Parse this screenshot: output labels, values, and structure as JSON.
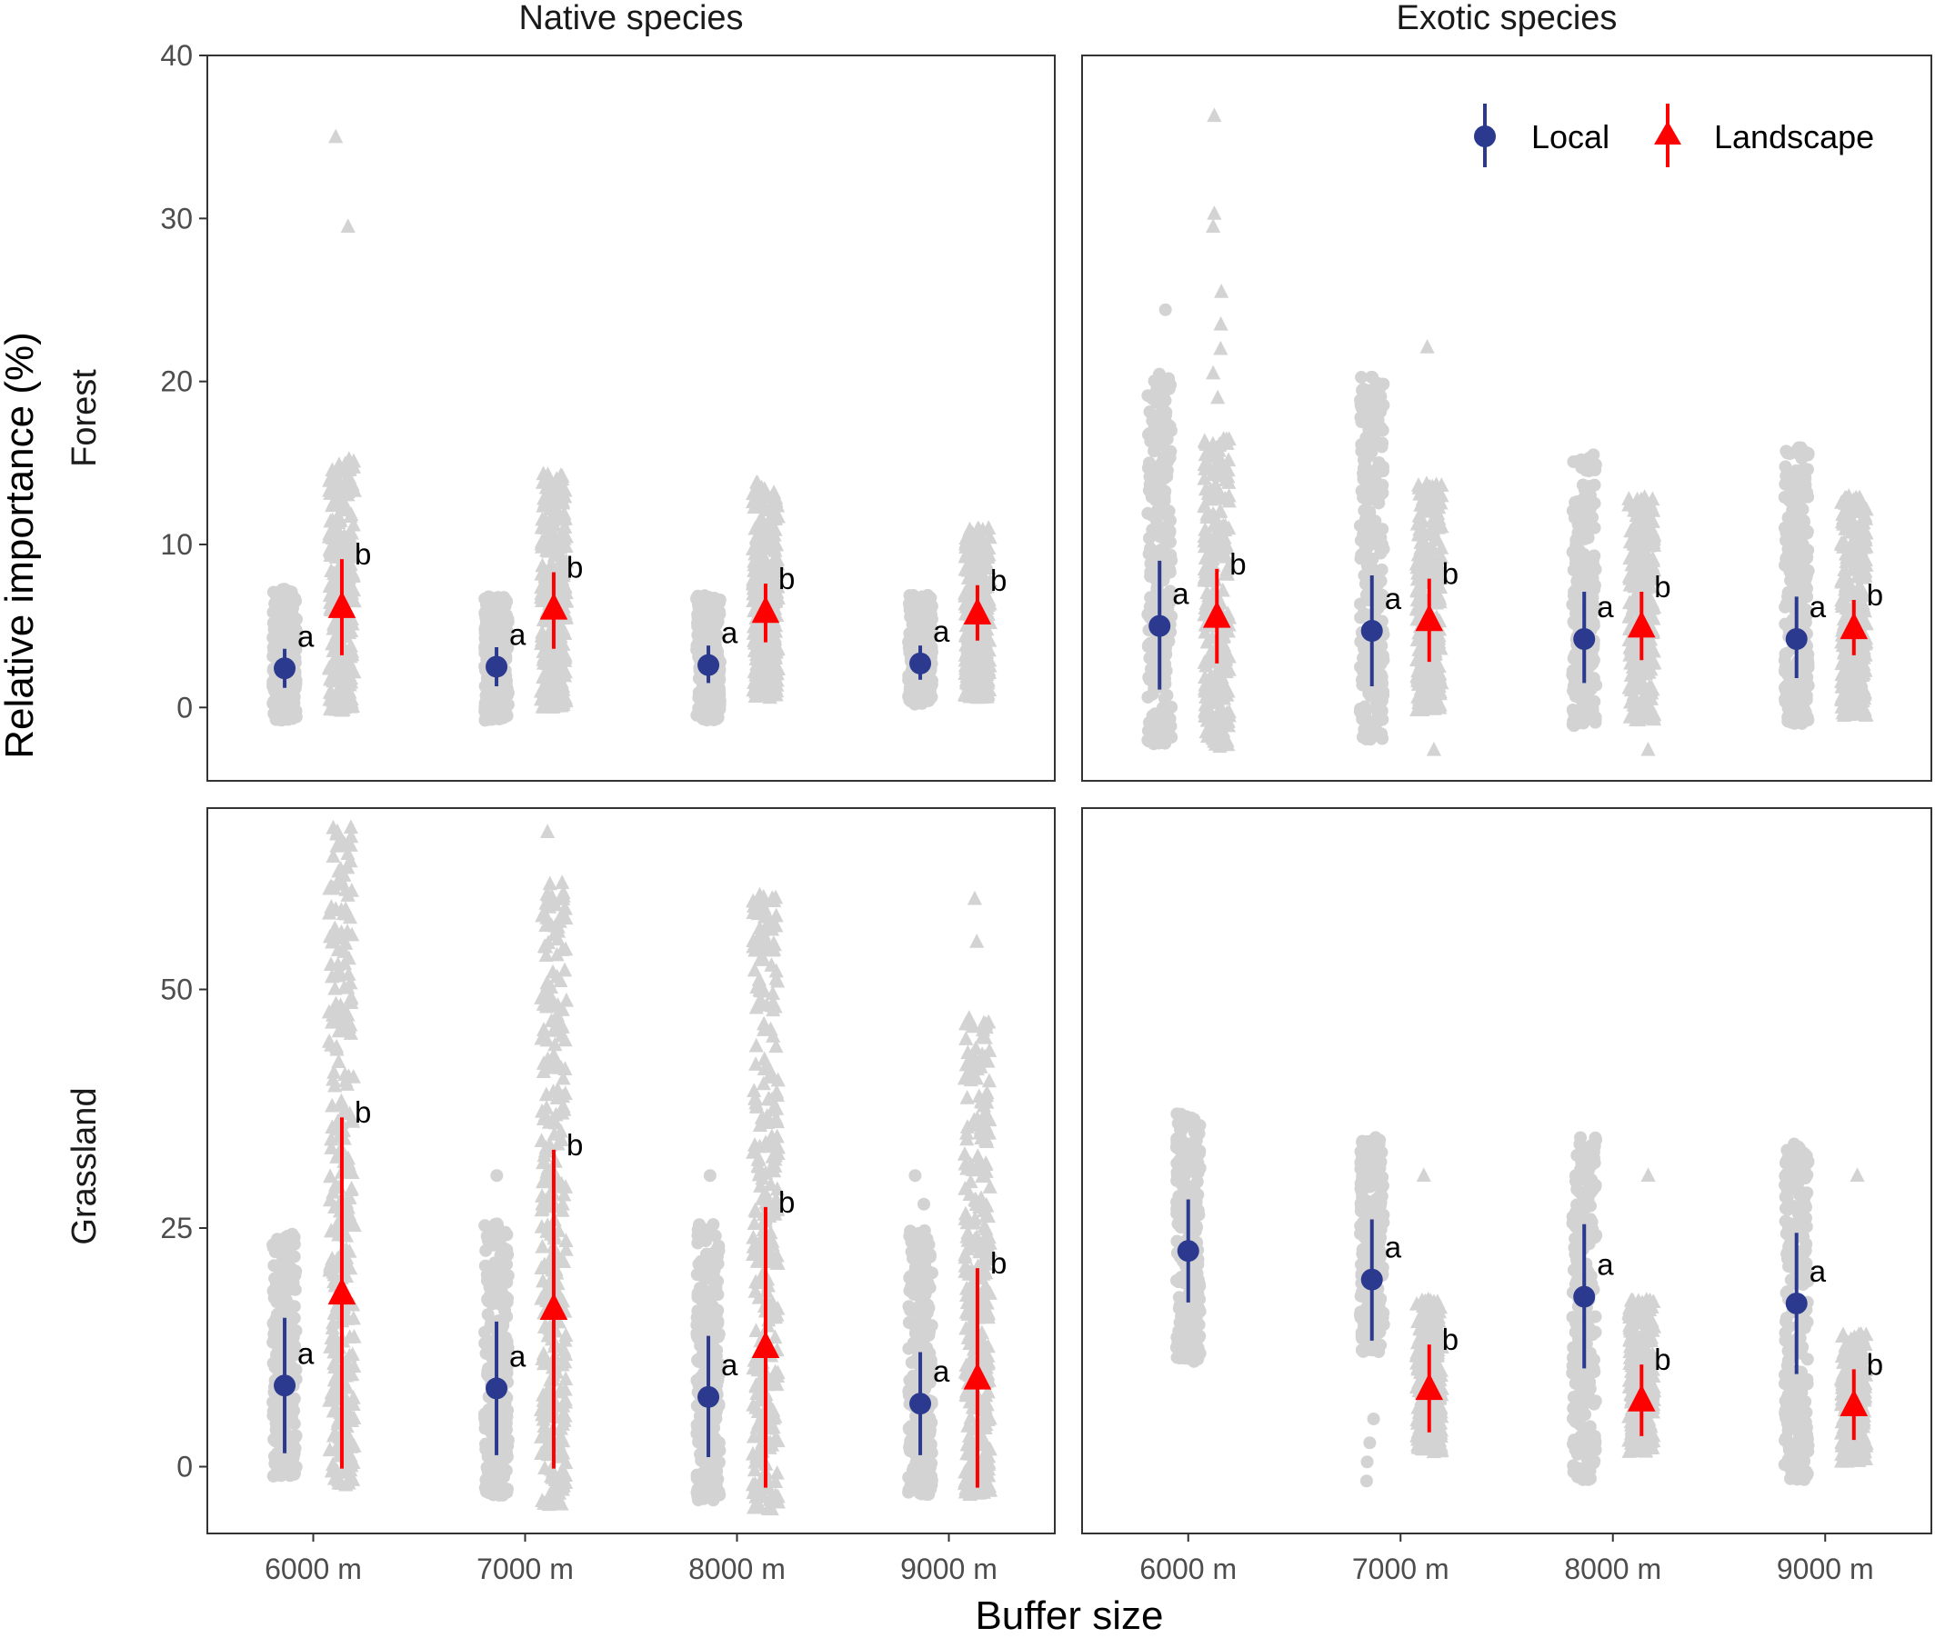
{
  "chart_data": {
    "type": "scatter",
    "subtype": "faceted point-range with jittered raw points",
    "xlabel": "Buffer size",
    "ylabel": "Relative importance (%)",
    "categories": [
      "6000 m",
      "7000 m",
      "8000 m",
      "9000 m"
    ],
    "column_labels": [
      "Native species",
      "Exotic species"
    ],
    "row_labels": [
      "Forest",
      "Grassland"
    ],
    "legend": {
      "placement": "top-right of Exotic/Forest panel",
      "items": [
        {
          "name": "Local",
          "color": "#2b3a8f",
          "marker": "circle"
        },
        {
          "name": "Landscape",
          "color": "#ff0000",
          "marker": "triangle"
        }
      ]
    },
    "raw_point_color": "#d3d3d3",
    "grid": false,
    "rows": [
      {
        "label": "Forest",
        "ylim": [
          -4.5,
          40
        ],
        "yticks": [
          "0",
          "10",
          "20",
          "30",
          "40"
        ],
        "ytick_values": [
          0,
          10,
          20,
          30,
          40
        ]
      },
      {
        "label": "Grassland",
        "ylim": [
          -7,
          69
        ],
        "yticks": [
          "0",
          "25",
          "50"
        ],
        "ytick_values": [
          0,
          25,
          50
        ]
      }
    ],
    "panels": [
      {
        "column": "Native species",
        "row": "Forest",
        "local": {
          "mean": [
            2.4,
            2.5,
            2.6,
            2.7
          ],
          "lower": [
            1.2,
            1.3,
            1.5,
            1.7
          ],
          "upper": [
            3.6,
            3.7,
            3.8,
            3.8
          ],
          "letters": [
            "a",
            "a",
            "a",
            "a"
          ],
          "raw_range": [
            [
              -0.8,
              7.3
            ],
            [
              -0.8,
              6.8
            ],
            [
              -0.8,
              6.9
            ],
            [
              0.2,
              6.9
            ]
          ]
        },
        "landscape": {
          "mean": [
            6.2,
            6.1,
            5.9,
            5.8
          ],
          "lower": [
            3.2,
            3.6,
            4.0,
            4.1
          ],
          "upper": [
            9.1,
            8.3,
            7.6,
            7.5
          ],
          "letters": [
            "b",
            "b",
            "b",
            "b"
          ],
          "raw_range": [
            [
              -0.2,
              15.3
            ],
            [
              0.0,
              14.5
            ],
            [
              0.6,
              13.8
            ],
            [
              0.6,
              11.0
            ]
          ],
          "outliers": [
            [
              29.5,
              35
            ],
            [],
            [],
            []
          ]
        }
      },
      {
        "column": "Exotic species",
        "row": "Forest",
        "local": {
          "mean": [
            5.0,
            4.7,
            4.2,
            4.2
          ],
          "lower": [
            1.1,
            1.3,
            1.5,
            1.8
          ],
          "upper": [
            9.0,
            8.1,
            7.1,
            6.8
          ],
          "letters": [
            "a",
            "a",
            "a",
            "a"
          ],
          "raw_range": [
            [
              -2.3,
              20.5
            ],
            [
              -2.0,
              20.5
            ],
            [
              -1.2,
              15.5
            ],
            [
              -1.0,
              16.0
            ]
          ],
          "outliers": [
            [
              24.4
            ],
            [
              19.8
            ],
            [],
            []
          ]
        },
        "landscape": {
          "mean": [
            5.6,
            5.4,
            5.0,
            4.9
          ],
          "lower": [
            2.7,
            2.8,
            2.9,
            3.2
          ],
          "upper": [
            8.5,
            7.9,
            7.1,
            6.6
          ],
          "letters": [
            "b",
            "b",
            "b",
            "b"
          ],
          "raw_range": [
            [
              -2.3,
              16.5
            ],
            [
              -0.2,
              13.8
            ],
            [
              -0.8,
              13.0
            ],
            [
              -0.5,
              13.0
            ]
          ],
          "outliers": [
            [
              -2.4,
              19,
              20.5,
              22,
              23.5,
              25.5,
              29.5,
              30.3,
              36.3
            ],
            [
              -2.6,
              22.1
            ],
            [
              -2.6
            ],
            []
          ]
        }
      },
      {
        "column": "Native species",
        "row": "Grassland",
        "local": {
          "mean": [
            8.5,
            8.2,
            7.3,
            6.6
          ],
          "lower": [
            1.4,
            1.2,
            1.0,
            1.2
          ],
          "upper": [
            15.6,
            15.2,
            13.7,
            12.0
          ],
          "letters": [
            "a",
            "a",
            "a",
            "a"
          ],
          "raw_range": [
            [
              -1.0,
              24.5
            ],
            [
              -3.0,
              25.5
            ],
            [
              -3.5,
              25.5
            ],
            [
              -3.0,
              25.0
            ]
          ],
          "outliers": [
            [],
            [
              30.5
            ],
            [
              30.5
            ],
            [
              27.5,
              30.5
            ]
          ]
        },
        "landscape": {
          "mean": [
            18.2,
            16.6,
            12.6,
            9.3
          ],
          "lower": [
            -0.2,
            -0.2,
            -2.2,
            -2.2
          ],
          "upper": [
            36.6,
            33.2,
            27.2,
            20.8
          ],
          "letters": [
            "b",
            "b",
            "b",
            "b"
          ],
          "raw_range": [
            [
              -2.0,
              67.0
            ],
            [
              -4.0,
              62.0
            ],
            [
              -4.5,
              60.0
            ],
            [
              -3.0,
              47.0
            ]
          ],
          "outliers": [
            [],
            [
              66.5
            ],
            [],
            [
              55.0,
              59.5
            ]
          ]
        }
      },
      {
        "column": "Exotic species",
        "row": "Grassland",
        "local": {
          "mean": [
            22.6,
            19.6,
            17.8,
            17.1
          ],
          "lower": [
            17.2,
            13.2,
            10.3,
            9.7
          ],
          "upper": [
            28.0,
            25.9,
            25.4,
            24.5
          ],
          "letters": [
            "",
            "a",
            "a",
            "a"
          ],
          "raw_range": [
            [
              11.0,
              37.0
            ],
            [
              12.0,
              34.5
            ],
            [
              -1.5,
              34.5
            ],
            [
              -1.5,
              34.0
            ]
          ],
          "outliers": [
            [],
            [
              -1.5,
              0.5,
              2.5,
              5.0
            ],
            [],
            []
          ]
        },
        "landscape": {
          "mean": [
            null,
            8.2,
            7.0,
            6.5
          ],
          "lower": [
            null,
            3.6,
            3.2,
            2.8
          ],
          "upper": [
            null,
            12.8,
            10.7,
            10.2
          ],
          "letters": [
            "",
            "b",
            "b",
            "b"
          ],
          "raw_range": [
            null,
            [
              1.5,
              17.5
            ],
            [
              1.5,
              17.5
            ],
            [
              0.5,
              14.0
            ]
          ],
          "outliers": [
            [],
            [
              30.5
            ],
            [
              30.5
            ],
            [
              30.5
            ]
          ]
        }
      }
    ]
  }
}
